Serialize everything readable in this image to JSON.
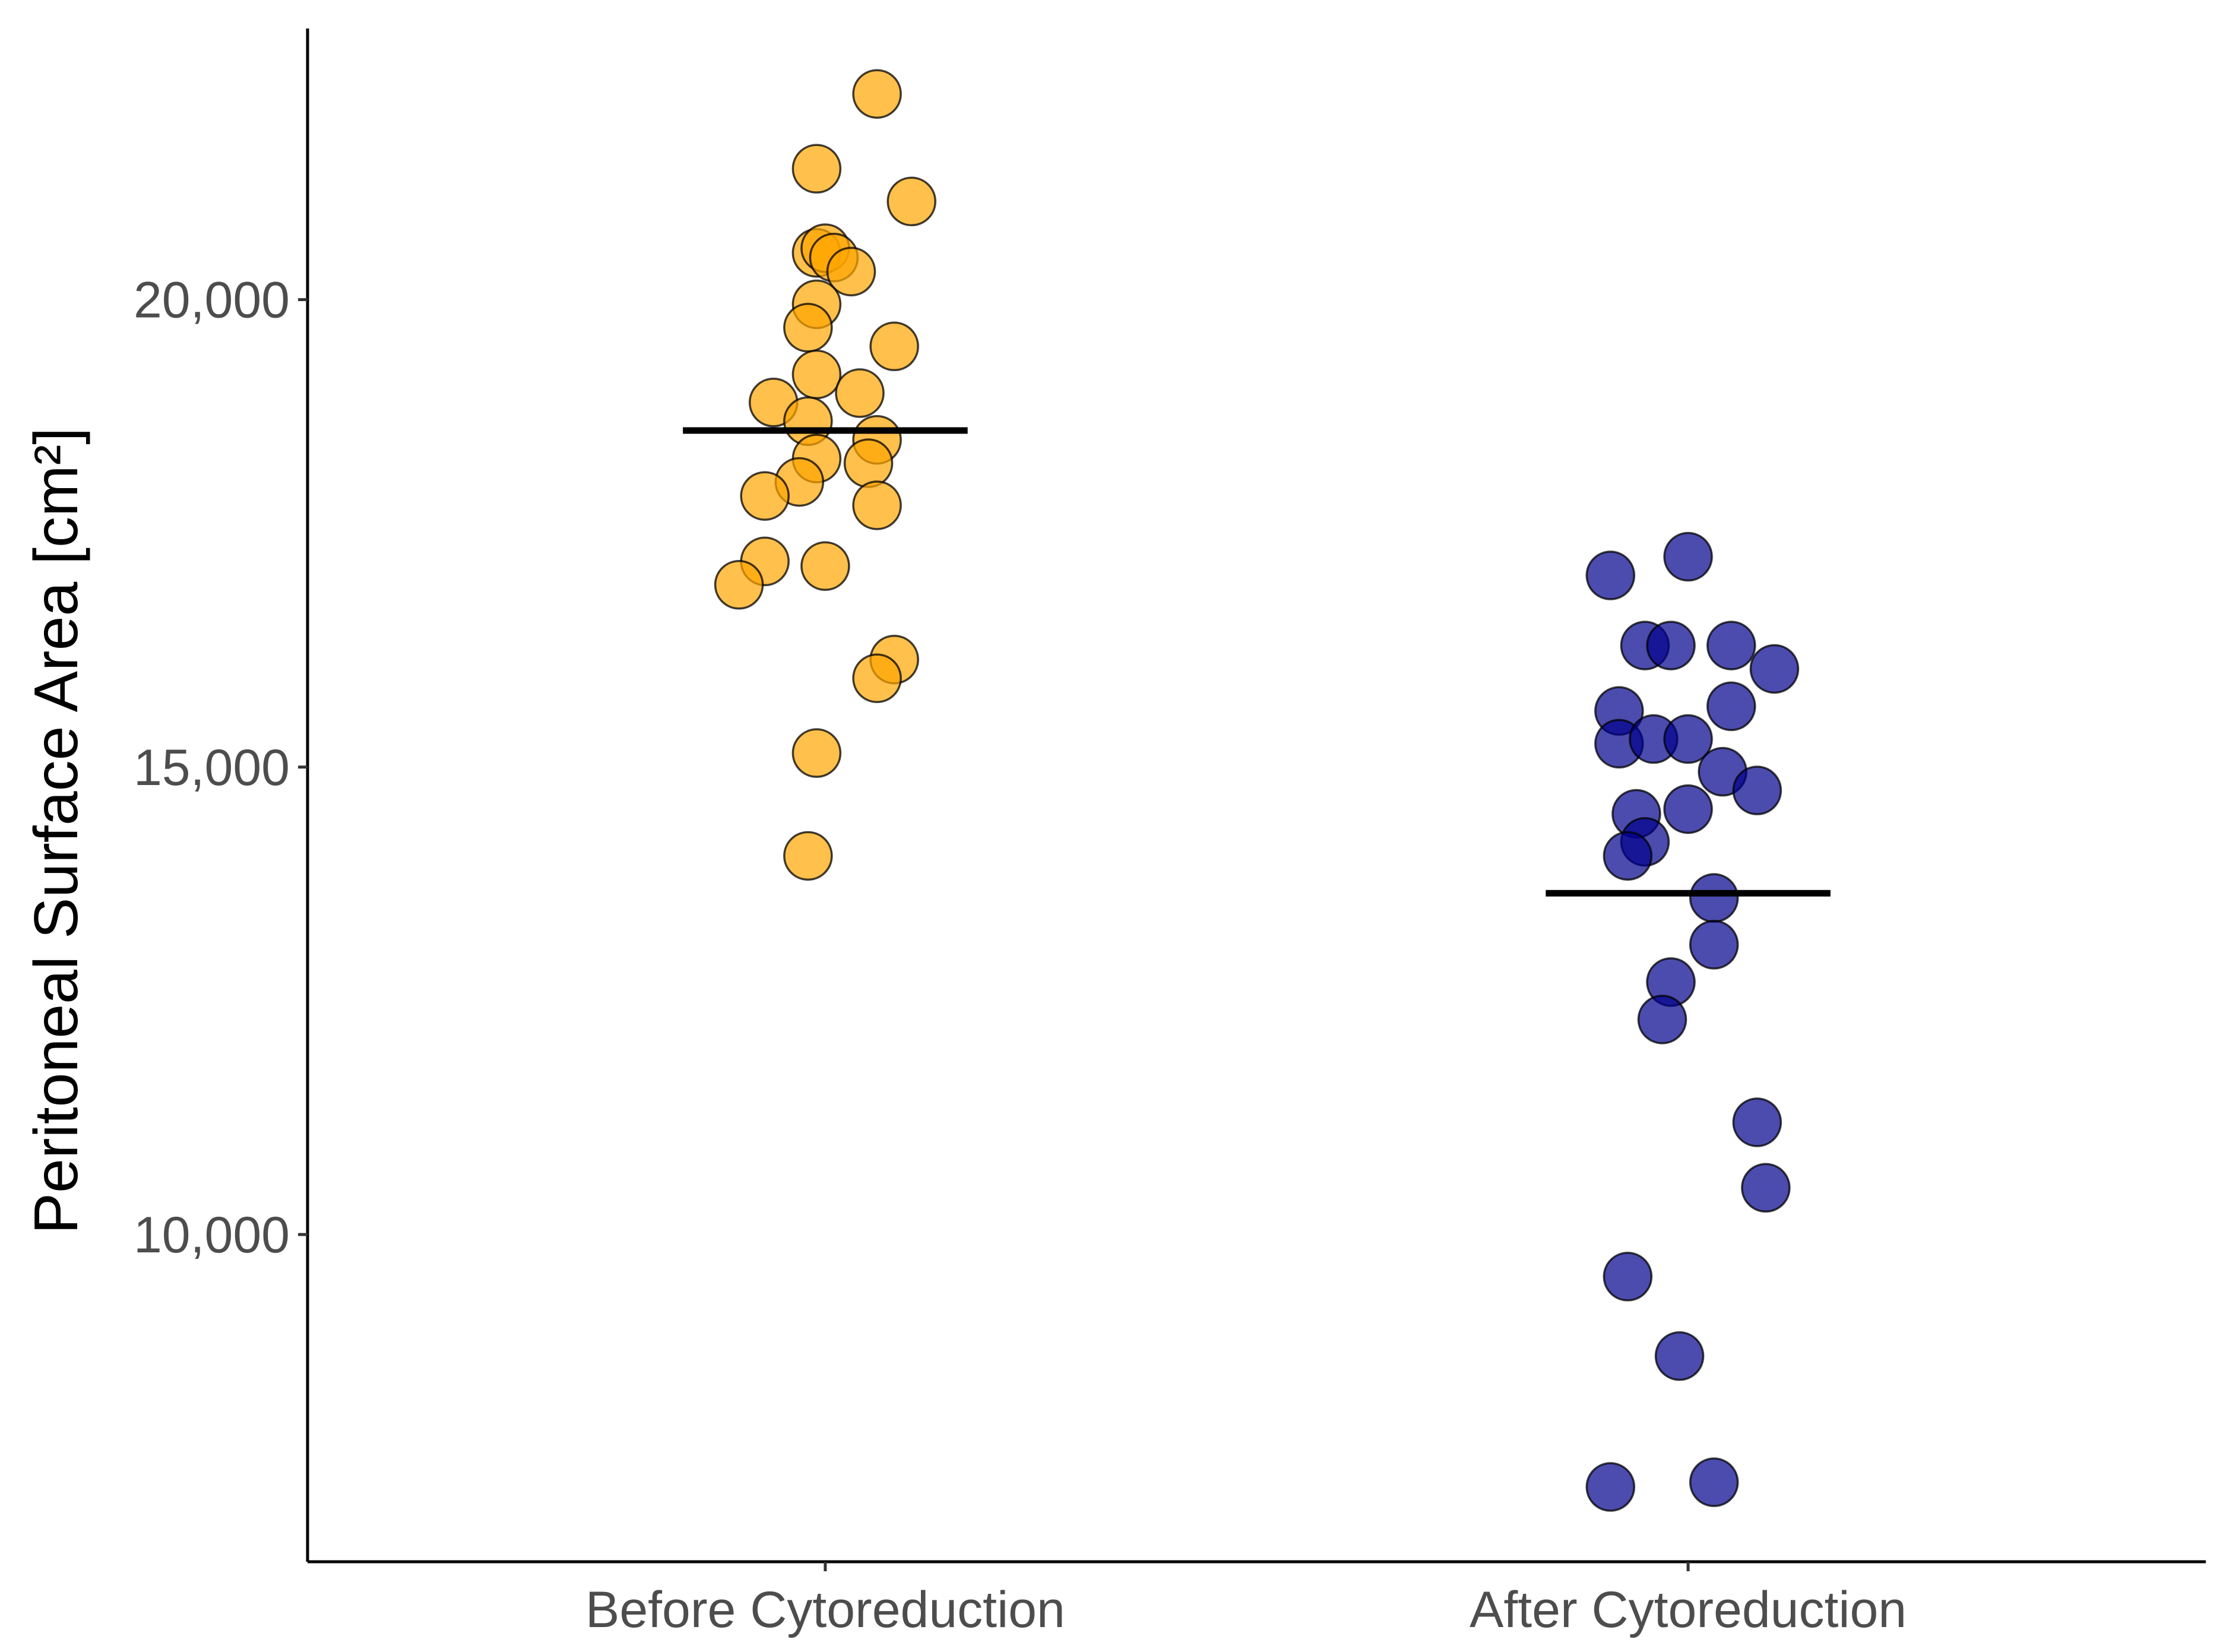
{
  "chart_data": {
    "type": "scatter",
    "subtype": "jitter-strip-with-mean",
    "title": "",
    "xlabel": "",
    "ylabel": "Peritoneal Surface Area [cm²]",
    "ylim": [
      6500,
      22900
    ],
    "yticks": [
      10000,
      15000,
      20000
    ],
    "ytick_labels": [
      "10,000",
      "15,000",
      "20,000"
    ],
    "categories": [
      "Before Cytoreduction",
      "After Cytoreduction"
    ],
    "grid": false,
    "legend": "none",
    "series": [
      {
        "name": "Before Cytoreduction",
        "color": "#FFA500",
        "mean": 18600,
        "points": [
          {
            "x": 1.06,
            "y": 22200
          },
          {
            "x": 0.99,
            "y": 21400
          },
          {
            "x": 1.1,
            "y": 21050
          },
          {
            "x": 0.99,
            "y": 20500
          },
          {
            "x": 1.0,
            "y": 20550
          },
          {
            "x": 1.01,
            "y": 20450
          },
          {
            "x": 1.03,
            "y": 20300
          },
          {
            "x": 0.99,
            "y": 19950
          },
          {
            "x": 0.98,
            "y": 19700
          },
          {
            "x": 1.08,
            "y": 19500
          },
          {
            "x": 0.99,
            "y": 19200
          },
          {
            "x": 1.04,
            "y": 19000
          },
          {
            "x": 0.94,
            "y": 18900
          },
          {
            "x": 0.98,
            "y": 18700
          },
          {
            "x": 1.06,
            "y": 18500
          },
          {
            "x": 0.99,
            "y": 18300
          },
          {
            "x": 1.05,
            "y": 18250
          },
          {
            "x": 0.97,
            "y": 18050
          },
          {
            "x": 0.93,
            "y": 17900
          },
          {
            "x": 1.06,
            "y": 17800
          },
          {
            "x": 0.93,
            "y": 17200
          },
          {
            "x": 1.0,
            "y": 17150
          },
          {
            "x": 0.9,
            "y": 16950
          },
          {
            "x": 1.08,
            "y": 16150
          },
          {
            "x": 1.06,
            "y": 15950
          },
          {
            "x": 0.99,
            "y": 15150
          },
          {
            "x": 0.98,
            "y": 14050
          }
        ]
      },
      {
        "name": "After Cytoreduction",
        "color": "#00008B",
        "mean": 13650,
        "points": [
          {
            "x": 2.0,
            "y": 17250
          },
          {
            "x": 1.91,
            "y": 17050
          },
          {
            "x": 1.95,
            "y": 16300
          },
          {
            "x": 1.98,
            "y": 16300
          },
          {
            "x": 2.05,
            "y": 16300
          },
          {
            "x": 2.1,
            "y": 16050
          },
          {
            "x": 1.92,
            "y": 15600
          },
          {
            "x": 2.05,
            "y": 15650
          },
          {
            "x": 1.92,
            "y": 15250
          },
          {
            "x": 1.96,
            "y": 15300
          },
          {
            "x": 2.0,
            "y": 15300
          },
          {
            "x": 2.04,
            "y": 14950
          },
          {
            "x": 2.08,
            "y": 14750
          },
          {
            "x": 1.94,
            "y": 14500
          },
          {
            "x": 2.0,
            "y": 14550
          },
          {
            "x": 1.95,
            "y": 14200
          },
          {
            "x": 1.93,
            "y": 14050
          },
          {
            "x": 2.03,
            "y": 13600
          },
          {
            "x": 2.03,
            "y": 13100
          },
          {
            "x": 1.98,
            "y": 12700
          },
          {
            "x": 1.97,
            "y": 12300
          },
          {
            "x": 2.08,
            "y": 11200
          },
          {
            "x": 2.09,
            "y": 10500
          },
          {
            "x": 1.93,
            "y": 9550
          },
          {
            "x": 1.99,
            "y": 8700
          },
          {
            "x": 1.91,
            "y": 7300
          },
          {
            "x": 2.03,
            "y": 7350
          }
        ]
      }
    ]
  }
}
